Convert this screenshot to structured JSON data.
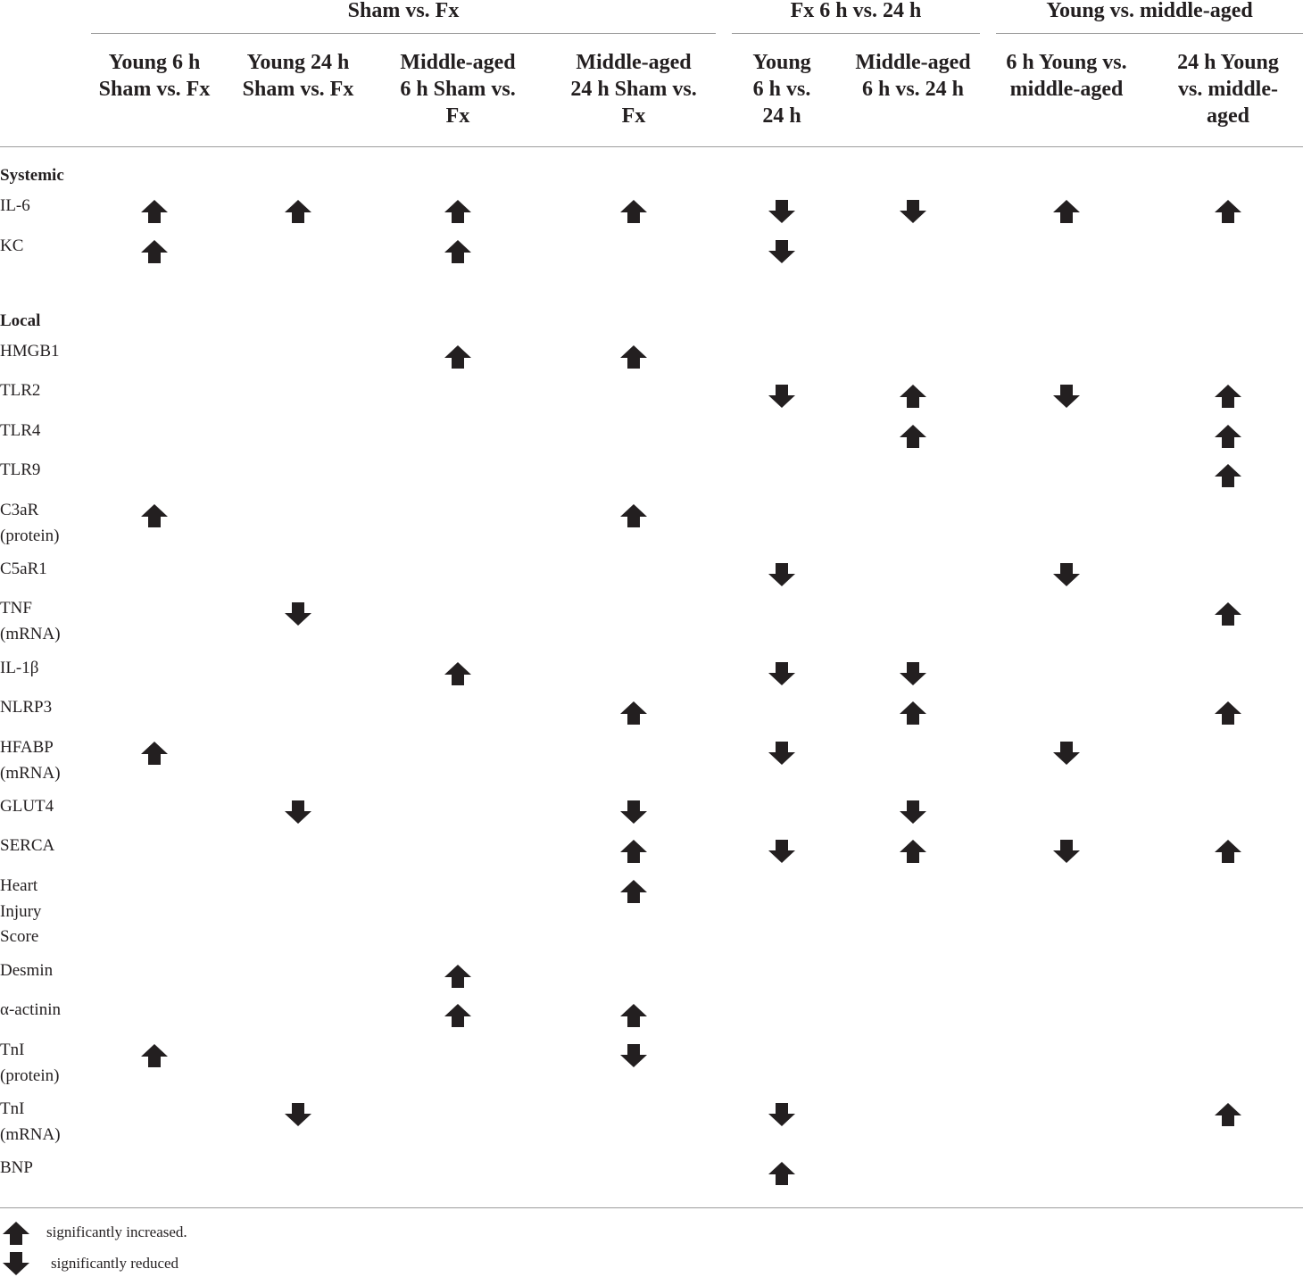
{
  "groups": [
    {
      "label": "Sham vs. Fx"
    },
    {
      "label": "Fx 6 h vs. 24 h"
    },
    {
      "label": "Young vs. middle-aged"
    }
  ],
  "columns": [
    {
      "lines": [
        "Young 6 h",
        "Sham vs. Fx"
      ]
    },
    {
      "lines": [
        "Young 24 h",
        "Sham vs. Fx"
      ]
    },
    {
      "lines": [
        "Middle-aged",
        "6 h Sham vs.",
        "Fx"
      ]
    },
    {
      "lines": [
        "Middle-aged",
        "24 h Sham vs.",
        "Fx"
      ]
    },
    {
      "lines": [
        "Young",
        "6 h vs.",
        "24 h"
      ]
    },
    {
      "lines": [
        "Middle-aged",
        "6 h vs. 24 h"
      ]
    },
    {
      "lines": [
        "6 h Young vs.",
        "middle-aged"
      ]
    },
    {
      "lines": [
        "24 h Young",
        "vs. middle-",
        "aged"
      ]
    }
  ],
  "sections": [
    {
      "title": "Systemic"
    },
    {
      "title": "Local"
    }
  ],
  "rows": [
    {
      "lines": [
        "IL-6"
      ],
      "cells": [
        "up",
        "up",
        "up",
        "up",
        "down",
        "down",
        "up",
        "up"
      ]
    },
    {
      "lines": [
        "KC"
      ],
      "cells": [
        "up",
        "",
        "up",
        "",
        "down",
        "",
        "",
        ""
      ]
    },
    {
      "lines": [
        "HMGB1"
      ],
      "cells": [
        "",
        "",
        "up",
        "up",
        "",
        "",
        "",
        ""
      ]
    },
    {
      "lines": [
        "TLR2"
      ],
      "cells": [
        "",
        "",
        "",
        "",
        "down",
        "up",
        "down",
        "up"
      ]
    },
    {
      "lines": [
        "TLR4"
      ],
      "cells": [
        "",
        "",
        "",
        "",
        "",
        "up",
        "",
        "up"
      ]
    },
    {
      "lines": [
        "TLR9"
      ],
      "cells": [
        "",
        "",
        "",
        "",
        "",
        "",
        "",
        "up"
      ]
    },
    {
      "lines": [
        "C3aR",
        "(protein)"
      ],
      "cells": [
        "up",
        "",
        "",
        "up",
        "",
        "",
        "",
        ""
      ]
    },
    {
      "lines": [
        "C5aR1"
      ],
      "cells": [
        "",
        "",
        "",
        "",
        "down",
        "",
        "down",
        ""
      ]
    },
    {
      "lines": [
        "TNF",
        "(mRNA)"
      ],
      "cells": [
        "",
        "down",
        "",
        "",
        "",
        "",
        "",
        "up"
      ]
    },
    {
      "lines": [
        "IL-1β"
      ],
      "cells": [
        "",
        "",
        "up",
        "",
        "down",
        "down",
        "",
        ""
      ]
    },
    {
      "lines": [
        "NLRP3"
      ],
      "cells": [
        "",
        "",
        "",
        "up",
        "",
        "up",
        "",
        "up"
      ]
    },
    {
      "lines": [
        "HFABP",
        "(mRNA)"
      ],
      "cells": [
        "up",
        "",
        "",
        "",
        "down",
        "",
        "down",
        ""
      ]
    },
    {
      "lines": [
        "GLUT4"
      ],
      "cells": [
        "",
        "down",
        "",
        "down",
        "",
        "down",
        "",
        ""
      ]
    },
    {
      "lines": [
        "SERCA"
      ],
      "cells": [
        "",
        "",
        "",
        "up",
        "down",
        "up",
        "down",
        "up"
      ]
    },
    {
      "lines": [
        "Heart",
        "Injury",
        "Score"
      ],
      "cells": [
        "",
        "",
        "",
        "up",
        "",
        "",
        "",
        ""
      ]
    },
    {
      "lines": [
        "Desmin"
      ],
      "cells": [
        "",
        "",
        "up",
        "",
        "",
        "",
        "",
        ""
      ]
    },
    {
      "lines": [
        "α-actinin"
      ],
      "cells": [
        "",
        "",
        "up",
        "up",
        "",
        "",
        "",
        ""
      ]
    },
    {
      "lines": [
        "TnI",
        "(protein)"
      ],
      "cells": [
        "up",
        "",
        "",
        "down",
        "",
        "",
        "",
        ""
      ]
    },
    {
      "lines": [
        "TnI",
        "(mRNA)"
      ],
      "cells": [
        "",
        "down",
        "",
        "",
        "down",
        "",
        "",
        "up"
      ]
    },
    {
      "lines": [
        "BNP"
      ],
      "cells": [
        "",
        "",
        "",
        "",
        "up",
        "",
        "",
        ""
      ]
    }
  ],
  "legend": {
    "up": "significantly increased.",
    "down": "significantly reduced"
  },
  "colors": {
    "arrow": "#231f20",
    "rule": "#9d9d9d"
  }
}
